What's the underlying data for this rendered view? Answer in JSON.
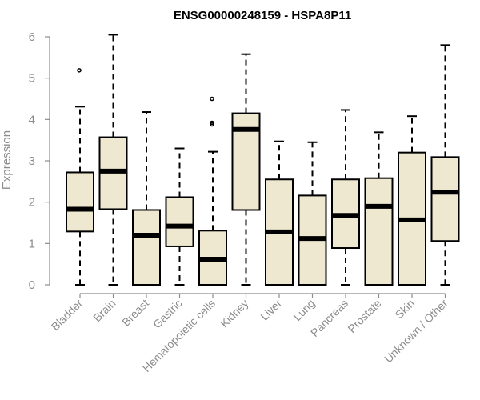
{
  "chart_data": {
    "type": "boxplot",
    "title": "ENSG00000248159 - HSPA8P11",
    "ylabel": "Expression",
    "xlabel": "",
    "ylim": [
      0,
      6
    ],
    "yticks": [
      0,
      1,
      2,
      3,
      4,
      5,
      6
    ],
    "grid": false,
    "legend": "none",
    "colors": {
      "box_fill": "#efe8d0",
      "stroke": "#000000",
      "axis": "#8c8c8c",
      "label": "#8c8c8c"
    },
    "categories": [
      "Bladder",
      "Brain",
      "Breast",
      "Gastric",
      "Hematopoietic cells",
      "Kidney",
      "Liver",
      "Lung",
      "Pancreas",
      "Prostate",
      "Skin",
      "Unknown / Other"
    ],
    "boxes": [
      {
        "min": 0,
        "q1": 1.29,
        "median": 1.83,
        "q3": 2.72,
        "max": 4.31,
        "outliers": [
          5.19
        ]
      },
      {
        "min": 0,
        "q1": 1.83,
        "median": 2.75,
        "q3": 3.57,
        "max": 6.05,
        "outliers": []
      },
      {
        "min": 0,
        "q1": 0,
        "median": 1.2,
        "q3": 1.81,
        "max": 4.18,
        "outliers": []
      },
      {
        "min": 0,
        "q1": 0.93,
        "median": 1.42,
        "q3": 2.12,
        "max": 3.3,
        "outliers": []
      },
      {
        "min": 0,
        "q1": 0,
        "median": 0.62,
        "q3": 1.31,
        "max": 3.22,
        "outliers": [
          3.88,
          3.92,
          4.5
        ]
      },
      {
        "min": 0,
        "q1": 1.81,
        "median": 3.76,
        "q3": 4.15,
        "max": 5.58,
        "outliers": []
      },
      {
        "min": 0,
        "q1": 0,
        "median": 1.28,
        "q3": 2.55,
        "max": 3.47,
        "outliers": []
      },
      {
        "min": 0,
        "q1": 0,
        "median": 1.12,
        "q3": 2.16,
        "max": 3.45,
        "outliers": []
      },
      {
        "min": 0,
        "q1": 0.89,
        "median": 1.68,
        "q3": 2.55,
        "max": 4.23,
        "outliers": []
      },
      {
        "min": 0,
        "q1": 0,
        "median": 1.9,
        "q3": 2.58,
        "max": 3.69,
        "outliers": []
      },
      {
        "min": 0,
        "q1": 0,
        "median": 1.57,
        "q3": 3.2,
        "max": 4.08,
        "outliers": []
      },
      {
        "min": 0,
        "q1": 1.06,
        "median": 2.24,
        "q3": 3.09,
        "max": 5.8,
        "outliers": []
      }
    ]
  }
}
